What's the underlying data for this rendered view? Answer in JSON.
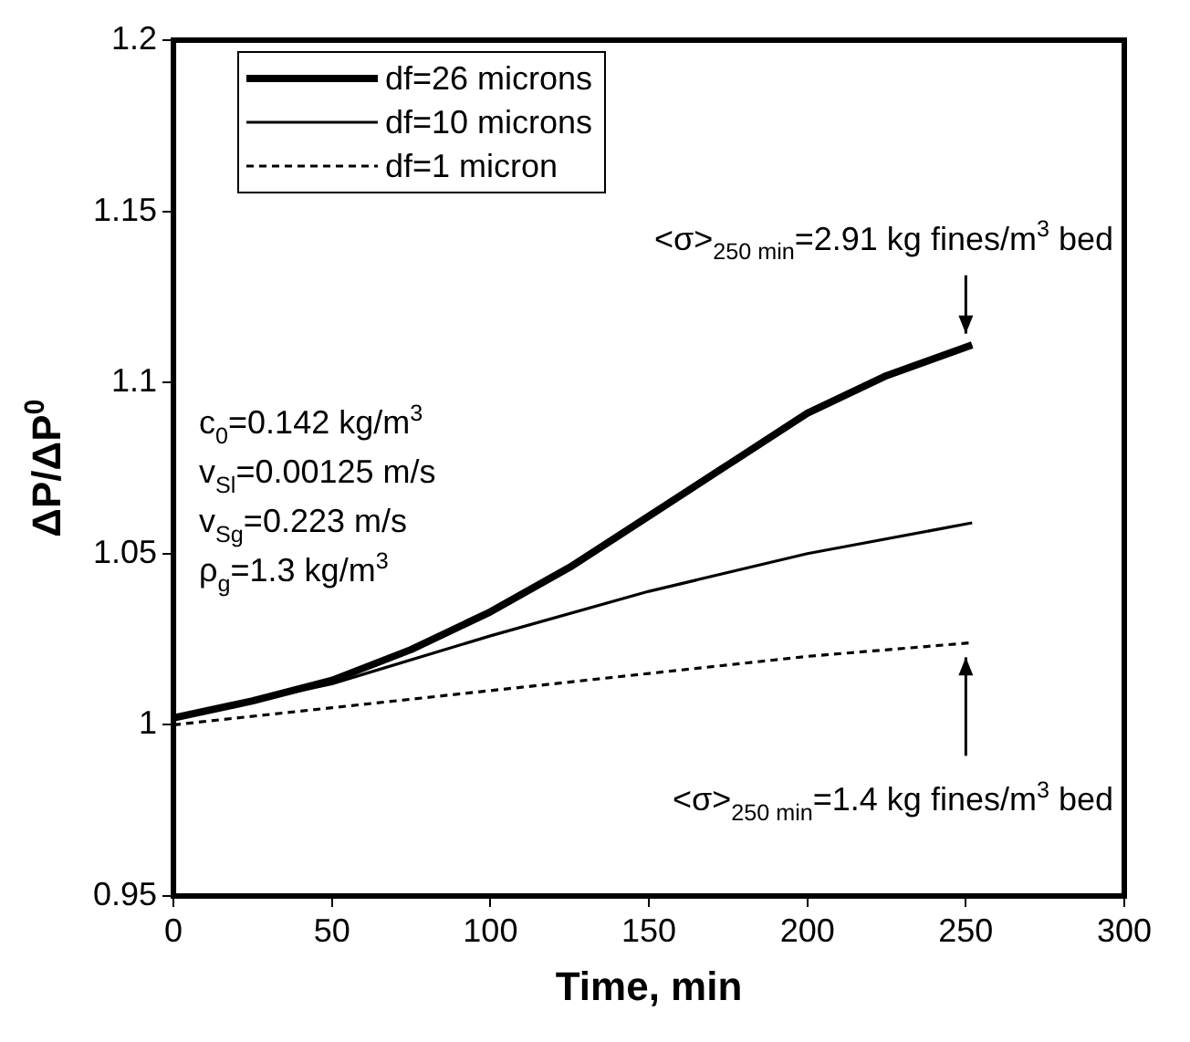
{
  "chart_data": {
    "type": "line",
    "xlabel": "Time, min",
    "ylabel": "ΔP/ΔP$^{0}$",
    "xlim": [
      0,
      300
    ],
    "xticks": [
      0,
      50,
      100,
      150,
      200,
      250,
      300
    ],
    "ylim": [
      0.95,
      1.2
    ],
    "yticks": [
      0.95,
      1,
      1.05,
      1.1,
      1.15,
      1.2
    ],
    "grid": false,
    "legend": "top left",
    "marker": "none",
    "annotations": [
      "c$_{0}$=0.142 kg/m$^{3}$",
      "v$_{Sl}$=0.00125 m/s",
      "v$_{Sg}$=0.223 m/s",
      "ρ$_{g}$=1.3 kg/m$^{3}$",
      {
        "text": "<σ>$_{250 min}$=2.91 kg fines/m$^{3}$ bed",
        "x": 250,
        "y": 1.11
      },
      {
        "text": "<σ>$_{250 min}$=1.4 kg fines/m$^{3}$ bed",
        "x": 250,
        "y": 1.024
      }
    ],
    "series": [
      {
        "name": "df=26 microns",
        "color": "#000000",
        "line_style": "solid",
        "x": [
          0,
          25,
          50,
          75,
          100,
          125,
          150,
          175,
          200,
          225,
          240,
          252
        ],
        "values": [
          1.002,
          1.007,
          1.013,
          1.022,
          1.033,
          1.046,
          1.061,
          1.076,
          1.091,
          1.102,
          1.107,
          1.111
        ]
      },
      {
        "name": "df=10 microns",
        "color": "#000000",
        "line_style": "solid",
        "x": [
          0,
          50,
          100,
          150,
          200,
          252
        ],
        "values": [
          1.002,
          1.012,
          1.026,
          1.039,
          1.05,
          1.059
        ]
      },
      {
        "name": "df=1 micron",
        "color": "#000000",
        "line_style": "dashed",
        "x": [
          0,
          50,
          100,
          150,
          200,
          252
        ],
        "values": [
          1.0,
          1.005,
          1.01,
          1.015,
          1.02,
          1.024
        ]
      }
    ]
  }
}
